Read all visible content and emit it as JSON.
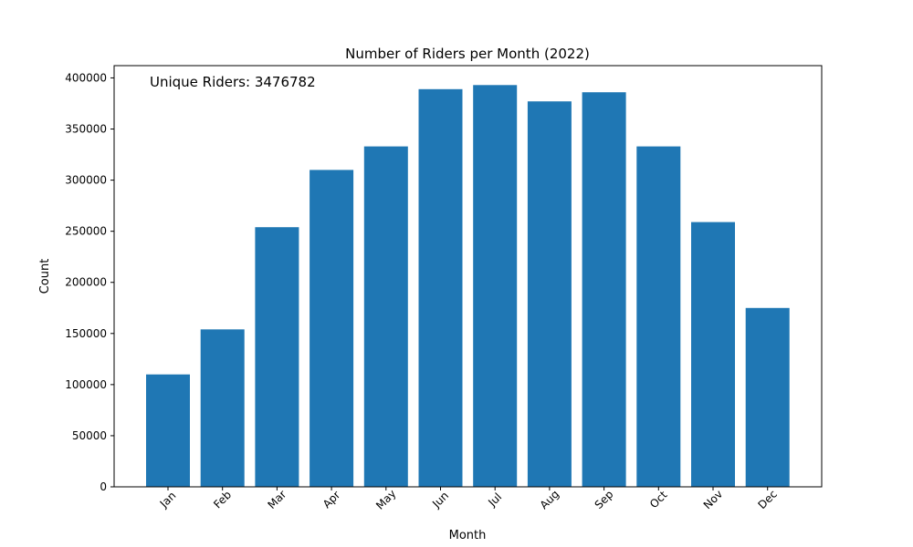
{
  "chart_data": {
    "type": "bar",
    "title": "Number of Riders per Month (2022)",
    "xlabel": "Month",
    "ylabel": "Count",
    "categories": [
      "Jan",
      "Feb",
      "Mar",
      "Apr",
      "May",
      "Jun",
      "Jul",
      "Aug",
      "Sep",
      "Oct",
      "Nov",
      "Dec"
    ],
    "values": [
      110000,
      154000,
      254000,
      310000,
      333000,
      389000,
      393000,
      377000,
      386000,
      333000,
      259000,
      175000
    ],
    "ylim": [
      0,
      412000
    ],
    "yticks": [
      0,
      50000,
      100000,
      150000,
      200000,
      250000,
      300000,
      350000,
      400000
    ],
    "ytick_labels": [
      "0",
      "50000",
      "100000",
      "150000",
      "200000",
      "250000",
      "300000",
      "350000",
      "400000"
    ],
    "annotation": "Unique Riders: 3476782",
    "bar_color": "#1f77b4",
    "grid": false,
    "xtick_rotation_deg": 45
  }
}
